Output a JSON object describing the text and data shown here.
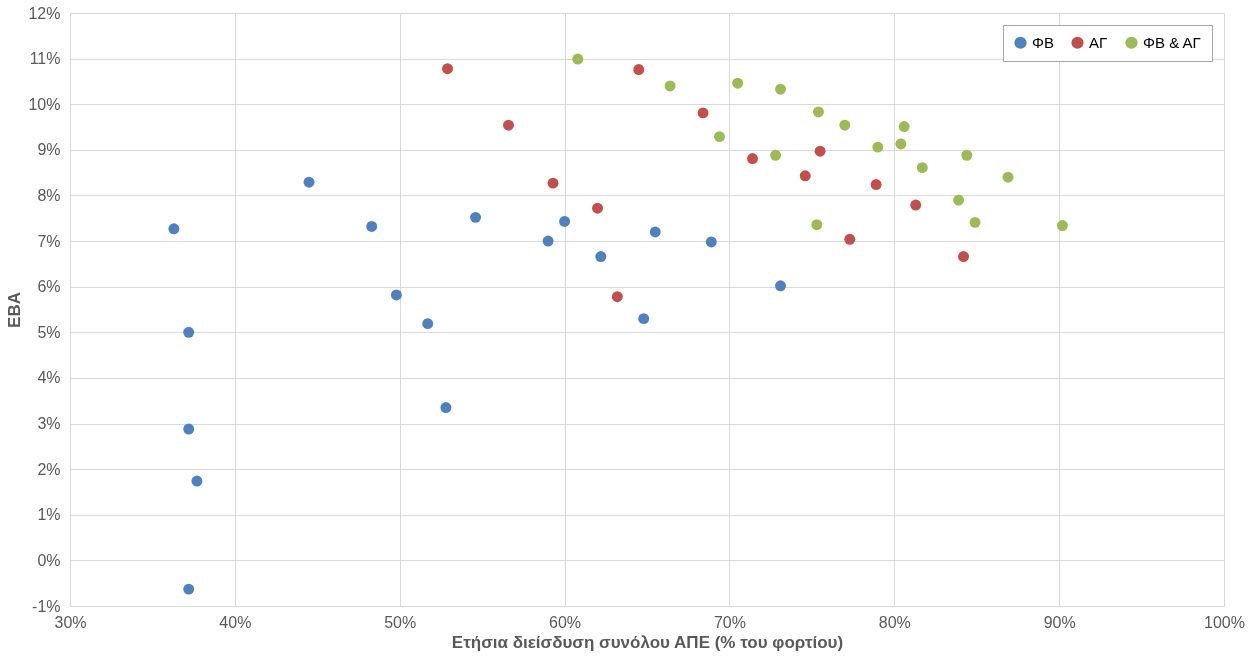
{
  "chart_data": {
    "type": "scatter",
    "xlabel": "Ετήσια διείσδυση συνόλου ΑΠΕ (% του φορτίου)",
    "ylabel": "ΕΒΑ",
    "series": [
      {
        "name": "ΦΒ",
        "color": "#4f81bd",
        "x": [
          36.3,
          37.2,
          37.2,
          37.7,
          37.2,
          44.5,
          48.3,
          49.8,
          51.7,
          52.8,
          54.6,
          59.0,
          60.0,
          62.2,
          64.8,
          65.5,
          68.9,
          73.1
        ],
        "values": [
          7.27,
          5.0,
          2.88,
          1.74,
          -0.63,
          8.29,
          7.32,
          5.82,
          5.19,
          3.35,
          7.52,
          7.0,
          7.43,
          6.66,
          5.3,
          7.2,
          6.98,
          6.02
        ]
      },
      {
        "name": "ΑΓ",
        "color": "#c0504d",
        "x": [
          52.9,
          56.6,
          59.3,
          62.0,
          63.2,
          64.5,
          68.4,
          71.4,
          74.6,
          75.5,
          77.3,
          78.9,
          81.3,
          84.2
        ],
        "values": [
          10.78,
          9.54,
          8.27,
          7.72,
          5.78,
          10.76,
          9.81,
          8.81,
          8.43,
          8.97,
          7.04,
          8.24,
          7.79,
          6.66
        ]
      },
      {
        "name": "ΦΒ & ΑΓ",
        "color": "#9bbb59",
        "x": [
          60.8,
          66.4,
          69.4,
          70.5,
          72.8,
          73.1,
          75.3,
          75.4,
          77.0,
          79.0,
          80.4,
          80.6,
          81.7,
          83.9,
          84.4,
          84.9,
          86.9,
          90.2
        ],
        "values": [
          10.99,
          10.4,
          9.29,
          10.46,
          8.88,
          10.33,
          7.36,
          9.83,
          9.54,
          9.06,
          9.13,
          9.51,
          8.61,
          7.9,
          8.88,
          7.41,
          8.4,
          7.34
        ]
      }
    ],
    "xlim": [
      30,
      100
    ],
    "xticks": [
      {
        "value": 30,
        "label": "30%"
      },
      {
        "value": 40,
        "label": "40%"
      },
      {
        "value": 50,
        "label": "50%"
      },
      {
        "value": 60,
        "label": "60%"
      },
      {
        "value": 70,
        "label": "70%"
      },
      {
        "value": 80,
        "label": "80%"
      },
      {
        "value": 90,
        "label": "90%"
      },
      {
        "value": 100,
        "label": "100%"
      }
    ],
    "ylim": [
      -1,
      12
    ],
    "yticks": [
      {
        "value": -1,
        "label": "-1%"
      },
      {
        "value": 0,
        "label": "0%"
      },
      {
        "value": 1,
        "label": "1%"
      },
      {
        "value": 2,
        "label": "2%"
      },
      {
        "value": 3,
        "label": "3%"
      },
      {
        "value": 4,
        "label": "4%"
      },
      {
        "value": 5,
        "label": "5%"
      },
      {
        "value": 6,
        "label": "6%"
      },
      {
        "value": 7,
        "label": "7%"
      },
      {
        "value": 8,
        "label": "8%"
      },
      {
        "value": 9,
        "label": "9%"
      },
      {
        "value": 10,
        "label": "10%"
      },
      {
        "value": 11,
        "label": "11%"
      },
      {
        "value": 12,
        "label": "12%"
      }
    ],
    "grid": true,
    "legend": "top right",
    "marker": "circle"
  }
}
